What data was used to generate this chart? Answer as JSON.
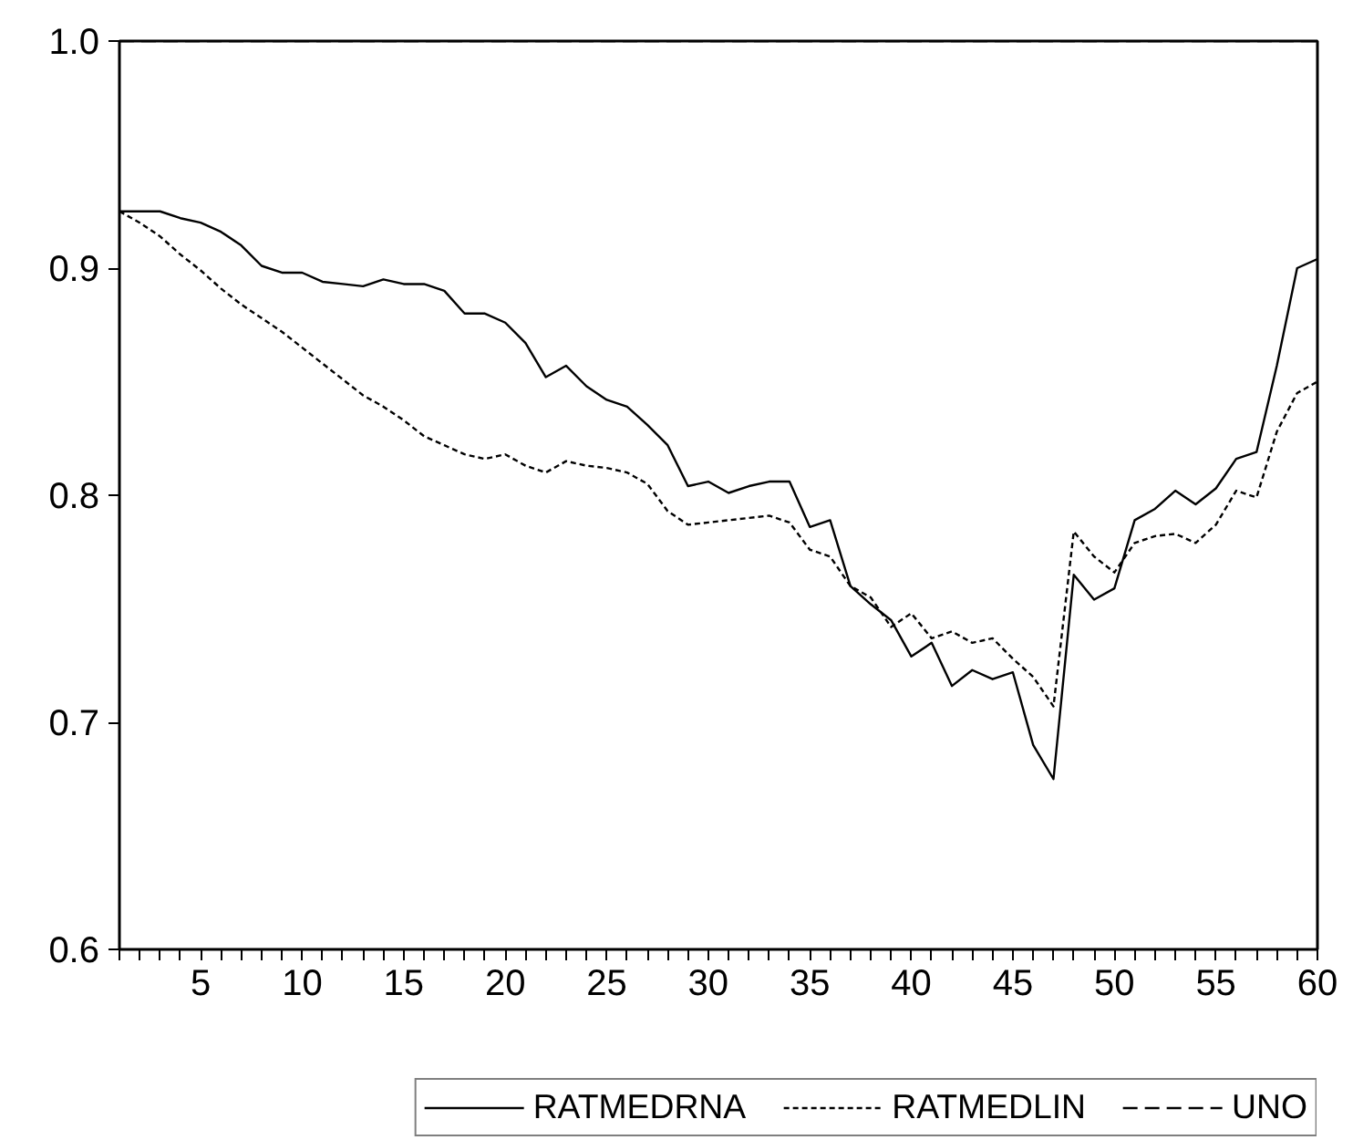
{
  "chart_data": {
    "type": "line",
    "x": [
      1,
      2,
      3,
      4,
      5,
      6,
      7,
      8,
      9,
      10,
      11,
      12,
      13,
      14,
      15,
      16,
      17,
      18,
      19,
      20,
      21,
      22,
      23,
      24,
      25,
      26,
      27,
      28,
      29,
      30,
      31,
      32,
      33,
      34,
      35,
      36,
      37,
      38,
      39,
      40,
      41,
      42,
      43,
      44,
      45,
      46,
      47,
      48,
      49,
      50,
      51,
      52,
      53,
      54,
      55,
      56,
      57,
      58,
      59,
      60
    ],
    "series": [
      {
        "name": "RATMEDRNA",
        "color": "#000000",
        "line_style": "solid",
        "values": [
          0.925,
          0.925,
          0.925,
          0.922,
          0.92,
          0.916,
          0.91,
          0.901,
          0.898,
          0.898,
          0.894,
          0.893,
          0.892,
          0.895,
          0.893,
          0.893,
          0.89,
          0.88,
          0.88,
          0.876,
          0.867,
          0.852,
          0.857,
          0.848,
          0.842,
          0.839,
          0.831,
          0.822,
          0.804,
          0.806,
          0.801,
          0.804,
          0.806,
          0.806,
          0.786,
          0.789,
          0.76,
          0.752,
          0.745,
          0.729,
          0.735,
          0.716,
          0.723,
          0.719,
          0.722,
          0.69,
          0.675,
          0.765,
          0.754,
          0.759,
          0.789,
          0.794,
          0.802,
          0.796,
          0.803,
          0.816,
          0.819,
          0.857,
          0.9,
          0.904
        ]
      },
      {
        "name": "RATMEDLIN",
        "color": "#000000",
        "line_style": "dotted",
        "values": [
          0.925,
          0.92,
          0.914,
          0.906,
          0.899,
          0.891,
          0.884,
          0.878,
          0.872,
          0.865,
          0.858,
          0.851,
          0.844,
          0.839,
          0.833,
          0.826,
          0.822,
          0.818,
          0.816,
          0.818,
          0.813,
          0.81,
          0.815,
          0.813,
          0.812,
          0.81,
          0.805,
          0.793,
          0.787,
          0.788,
          0.789,
          0.79,
          0.791,
          0.788,
          0.776,
          0.773,
          0.76,
          0.755,
          0.742,
          0.748,
          0.737,
          0.74,
          0.735,
          0.737,
          0.728,
          0.72,
          0.707,
          0.784,
          0.773,
          0.766,
          0.779,
          0.782,
          0.783,
          0.779,
          0.787,
          0.802,
          0.799,
          0.828,
          0.845,
          0.85
        ]
      },
      {
        "name": "UNO",
        "color": "#000000",
        "line_style": "dashed",
        "values": [
          1,
          1,
          1,
          1,
          1,
          1,
          1,
          1,
          1,
          1,
          1,
          1,
          1,
          1,
          1,
          1,
          1,
          1,
          1,
          1,
          1,
          1,
          1,
          1,
          1,
          1,
          1,
          1,
          1,
          1,
          1,
          1,
          1,
          1,
          1,
          1,
          1,
          1,
          1,
          1,
          1,
          1,
          1,
          1,
          1,
          1,
          1,
          1,
          1,
          1,
          1,
          1,
          1,
          1,
          1,
          1,
          1,
          1,
          1,
          1
        ]
      }
    ],
    "xlim": [
      1,
      60
    ],
    "xticks": [
      {
        "value": 1,
        "label": null
      },
      {
        "value": 2,
        "label": null
      },
      {
        "value": 3,
        "label": null
      },
      {
        "value": 4,
        "label": null
      },
      5,
      {
        "value": 6,
        "label": null
      },
      {
        "value": 7,
        "label": null
      },
      {
        "value": 8,
        "label": null
      },
      {
        "value": 9,
        "label": null
      },
      10,
      {
        "value": 11,
        "label": null
      },
      {
        "value": 12,
        "label": null
      },
      {
        "value": 13,
        "label": null
      },
      {
        "value": 14,
        "label": null
      },
      15,
      {
        "value": 16,
        "label": null
      },
      {
        "value": 17,
        "label": null
      },
      {
        "value": 18,
        "label": null
      },
      {
        "value": 19,
        "label": null
      },
      20,
      {
        "value": 21,
        "label": null
      },
      {
        "value": 22,
        "label": null
      },
      {
        "value": 23,
        "label": null
      },
      {
        "value": 24,
        "label": null
      },
      25,
      {
        "value": 26,
        "label": null
      },
      {
        "value": 27,
        "label": null
      },
      {
        "value": 28,
        "label": null
      },
      {
        "value": 29,
        "label": null
      },
      30,
      {
        "value": 31,
        "label": null
      },
      {
        "value": 32,
        "label": null
      },
      {
        "value": 33,
        "label": null
      },
      {
        "value": 34,
        "label": null
      },
      35,
      {
        "value": 36,
        "label": null
      },
      {
        "value": 37,
        "label": null
      },
      {
        "value": 38,
        "label": null
      },
      {
        "value": 39,
        "label": null
      },
      40,
      {
        "value": 41,
        "label": null
      },
      {
        "value": 42,
        "label": null
      },
      {
        "value": 43,
        "label": null
      },
      {
        "value": 44,
        "label": null
      },
      45,
      {
        "value": 46,
        "label": null
      },
      {
        "value": 47,
        "label": null
      },
      {
        "value": 48,
        "label": null
      },
      {
        "value": 49,
        "label": null
      },
      50,
      {
        "value": 51,
        "label": null
      },
      {
        "value": 52,
        "label": null
      },
      {
        "value": 53,
        "label": null
      },
      {
        "value": 54,
        "label": null
      },
      55,
      {
        "value": 56,
        "label": null
      },
      {
        "value": 57,
        "label": null
      },
      {
        "value": 58,
        "label": null
      },
      {
        "value": 59,
        "label": null
      },
      60
    ],
    "ylim": [
      0.6,
      1.0
    ],
    "yticks": [
      0.6,
      0.7,
      0.8,
      0.9,
      {
        "value": 1.0,
        "label": "1.0"
      }
    ],
    "legend": "bottom"
  }
}
